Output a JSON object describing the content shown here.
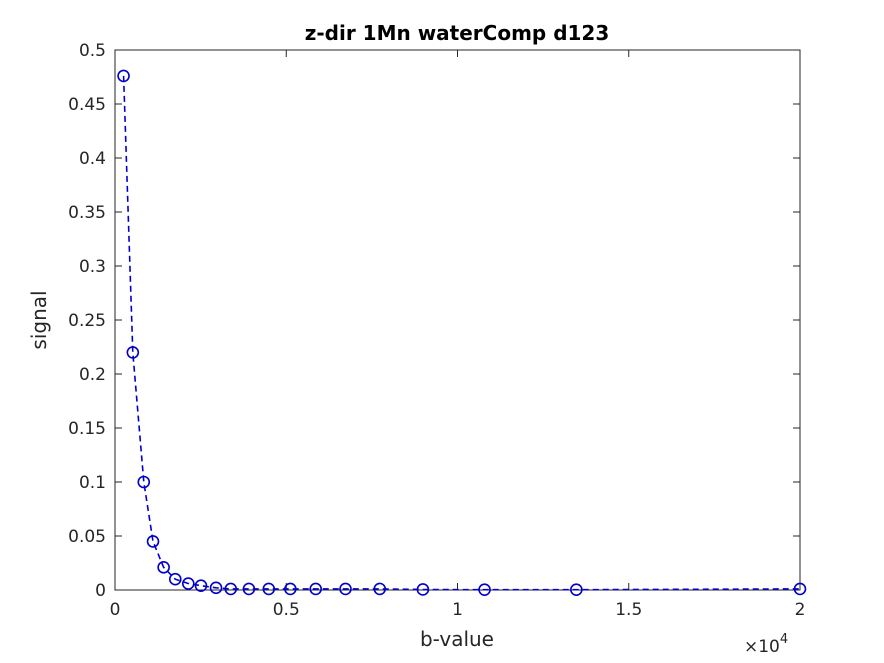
{
  "chart_data": {
    "type": "line",
    "title": "z-dir 1Mn waterComp d123",
    "xlabel": "b-value",
    "ylabel": "signal",
    "x_exponent_label": "×10",
    "x_exponent_power": "4",
    "xlim": [
      0,
      20000
    ],
    "ylim": [
      0,
      0.5
    ],
    "x_ticks": [
      0,
      5000,
      10000,
      15000,
      20000
    ],
    "x_tick_labels": [
      "0",
      "0.5",
      "1",
      "1.5",
      "2"
    ],
    "y_ticks": [
      0,
      0.05,
      0.1,
      0.15,
      0.2,
      0.25,
      0.3,
      0.35,
      0.4,
      0.45,
      0.5
    ],
    "y_tick_labels": [
      "0",
      "0.05",
      "0.1",
      "0.15",
      "0.2",
      "0.25",
      "0.3",
      "0.35",
      "0.4",
      "0.45",
      "0.5"
    ],
    "grid": false,
    "series": [
      {
        "color": "#0000cc",
        "line_style": "dashed",
        "marker": "circle",
        "x": [
          250,
          520,
          840,
          1110,
          1420,
          1760,
          2140,
          2510,
          2950,
          3380,
          3910,
          4490,
          5120,
          5860,
          6730,
          7730,
          8990,
          10790,
          13470,
          20000
        ],
        "y": [
          0.476,
          0.22,
          0.1,
          0.045,
          0.021,
          0.01,
          0.006,
          0.004,
          0.002,
          0.001,
          0.001,
          0.001,
          0.001,
          0.001,
          0.001,
          0.001,
          0.0005,
          0.0003,
          0.0003,
          0.001
        ]
      }
    ]
  }
}
